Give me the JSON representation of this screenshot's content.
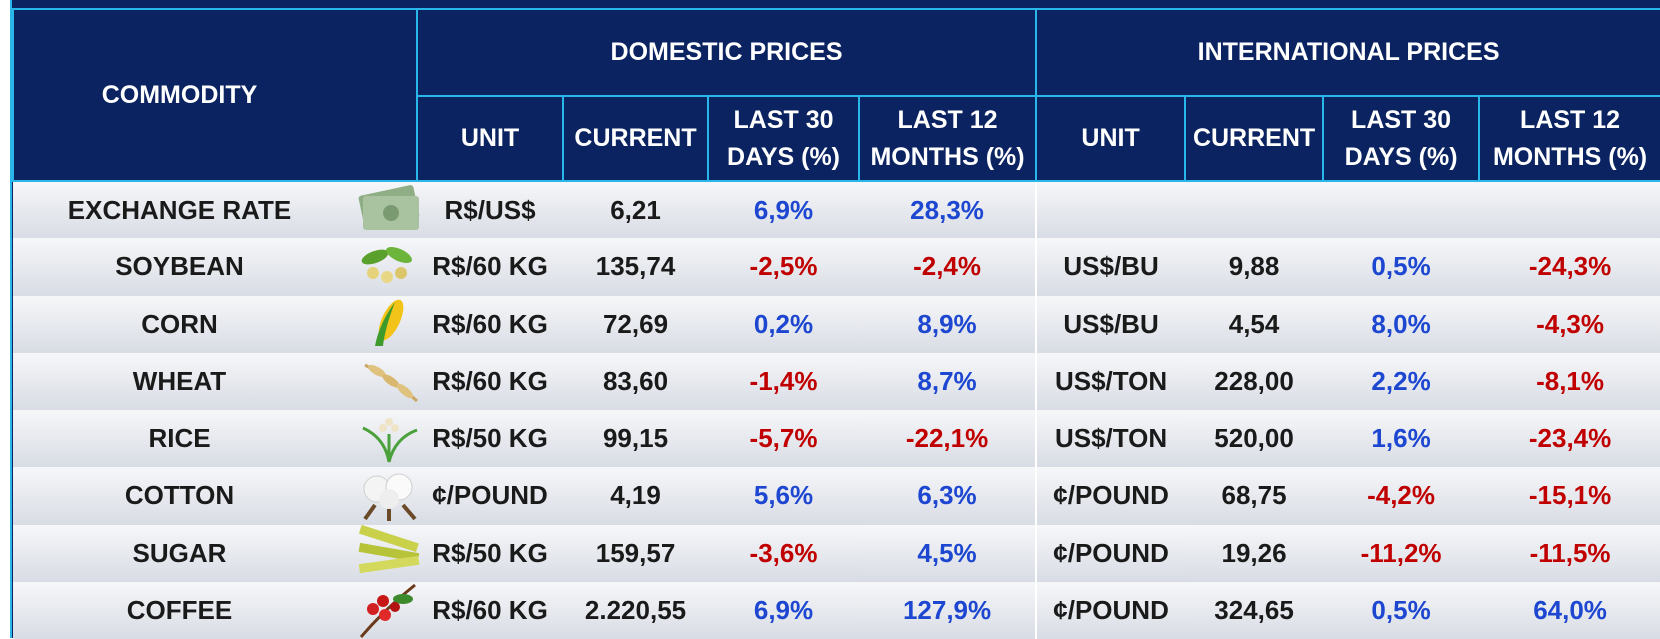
{
  "header": {
    "commodity": "COMMODITY",
    "domestic": "DOMESTIC PRICES",
    "international": "INTERNATIONAL PRICES",
    "domestic_columns": [
      "UNIT",
      "CURRENT",
      "LAST 30 DAYS (%)",
      "LAST 12 MONTHS (%)"
    ],
    "international_columns": [
      "UNIT",
      "CURRENT",
      "LAST 30 DAYS (%)",
      "LAST 12 MONTHS (%)"
    ]
  },
  "rows": [
    {
      "commodity": "EXCHANGE RATE",
      "domestic": [
        "R$/US$",
        "6,21",
        "6,9%",
        "28,3%"
      ]
    },
    {
      "commodity": "SOYBEAN",
      "domestic": [
        "R$/60 KG",
        "135,74",
        "-2,5%",
        "-2,4%"
      ],
      "international": [
        "US$/BU",
        "9,88",
        "0,5%",
        "-24,3%"
      ]
    },
    {
      "commodity": "CORN",
      "domestic": [
        "R$/60 KG",
        "72,69",
        "0,2%",
        "8,9%"
      ],
      "international": [
        "US$/BU",
        "4,54",
        "8,0%",
        "-4,3%"
      ]
    },
    {
      "commodity": "WHEAT",
      "domestic": [
        "R$/60 KG",
        "83,60",
        "-1,4%",
        "8,7%"
      ],
      "international": [
        "US$/TON",
        "228,00",
        "2,2%",
        "-8,1%"
      ]
    },
    {
      "commodity": "RICE",
      "domestic": [
        "R$/50 KG",
        "99,15",
        "-5,7%",
        "-22,1%"
      ],
      "international": [
        "US$/TON",
        "520,00",
        "1,6%",
        "-23,4%"
      ]
    },
    {
      "commodity": "COTTON",
      "domestic": [
        "¢/POUND",
        "4,19",
        "5,6%",
        "6,3%"
      ],
      "international": [
        "¢/POUND",
        "68,75",
        "-4,2%",
        "-15,1%"
      ]
    },
    {
      "commodity": "SUGAR",
      "domestic": [
        "R$/50 KG",
        "159,57",
        "-3,6%",
        "4,5%"
      ],
      "international": [
        "¢/POUND",
        "19,26",
        "-11,2%",
        "-11,5%"
      ]
    },
    {
      "commodity": "COFFEE",
      "domestic": [
        "R$/60 KG",
        "2.220,55",
        "6,9%",
        "127,9%"
      ],
      "international": [
        "¢/POUND",
        "324,65",
        "0,5%",
        "64,0%"
      ]
    }
  ]
}
